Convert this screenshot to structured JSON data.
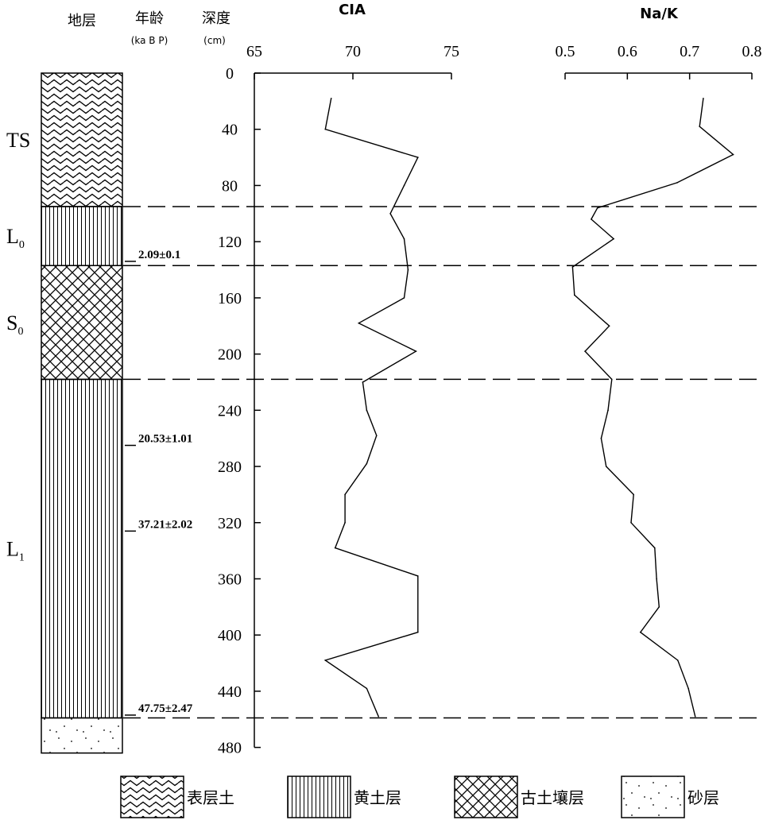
{
  "headers": {
    "stratum": "地层",
    "age": "年龄",
    "age_unit": "(ka B P)",
    "depth": "深度",
    "depth_unit": "(cm)"
  },
  "layers": [
    {
      "main": "TS",
      "sub": "",
      "pattern": "wavy",
      "top": 0,
      "bottom": 95
    },
    {
      "main": "L",
      "sub": "0",
      "pattern": "vlines",
      "top": 95,
      "bottom": 137
    },
    {
      "main": "S",
      "sub": "0",
      "pattern": "cross",
      "top": 137,
      "bottom": 218
    },
    {
      "main": "L",
      "sub": "1",
      "pattern": "vlines",
      "top": 218,
      "bottom": 459
    },
    {
      "main": "",
      "sub": "",
      "pattern": "dots",
      "top": 459,
      "bottom": 484
    }
  ],
  "ages": [
    {
      "label": "2.09±0.1",
      "depth": 134
    },
    {
      "label": "20.53±1.01",
      "depth": 265
    },
    {
      "label": "37.21±2.02",
      "depth": 326
    },
    {
      "label": "47.75±2.47",
      "depth": 457
    }
  ],
  "boundaries": [
    95,
    137,
    218,
    459
  ],
  "legend": [
    {
      "label": "表层土",
      "pattern": "wavy"
    },
    {
      "label": "黄土层",
      "pattern": "vlines"
    },
    {
      "label": "古土壤层",
      "pattern": "cross"
    },
    {
      "label": "砂层",
      "pattern": "dots"
    }
  ],
  "chart_data": {
    "type": "line",
    "depth_axis": {
      "label": "深度",
      "unit": "(cm)",
      "range": [
        0,
        480
      ],
      "ticks": [
        0,
        40,
        80,
        120,
        160,
        200,
        240,
        280,
        320,
        360,
        400,
        440,
        480
      ]
    },
    "series": [
      {
        "name": "CIA",
        "xlim": [
          65,
          75
        ],
        "ticks": [
          "65",
          "70",
          "75"
        ],
        "points": [
          {
            "depth": 18,
            "value": 68.9
          },
          {
            "depth": 40,
            "value": 68.6
          },
          {
            "depth": 60,
            "value": 73.3
          },
          {
            "depth": 80,
            "value": 72.6
          },
          {
            "depth": 100,
            "value": 71.9
          },
          {
            "depth": 118,
            "value": 72.6
          },
          {
            "depth": 140,
            "value": 72.8
          },
          {
            "depth": 160,
            "value": 72.6
          },
          {
            "depth": 178,
            "value": 70.3
          },
          {
            "depth": 198,
            "value": 73.2
          },
          {
            "depth": 220,
            "value": 70.5
          },
          {
            "depth": 240,
            "value": 70.7
          },
          {
            "depth": 258,
            "value": 71.2
          },
          {
            "depth": 278,
            "value": 70.7
          },
          {
            "depth": 300,
            "value": 69.6
          },
          {
            "depth": 320,
            "value": 69.6
          },
          {
            "depth": 338,
            "value": 69.1
          },
          {
            "depth": 358,
            "value": 73.3
          },
          {
            "depth": 398,
            "value": 73.3
          },
          {
            "depth": 418,
            "value": 68.6
          },
          {
            "depth": 438,
            "value": 70.7
          },
          {
            "depth": 458,
            "value": 71.3
          }
        ]
      },
      {
        "name": "Na/K",
        "xlim": [
          0.5,
          0.8
        ],
        "ticks": [
          "0.5",
          "0.6",
          "0.7",
          "0.8"
        ],
        "points": [
          {
            "depth": 18,
            "value": 0.722
          },
          {
            "depth": 38,
            "value": 0.716
          },
          {
            "depth": 58,
            "value": 0.77
          },
          {
            "depth": 78,
            "value": 0.68
          },
          {
            "depth": 96,
            "value": 0.552
          },
          {
            "depth": 104,
            "value": 0.542
          },
          {
            "depth": 118,
            "value": 0.578
          },
          {
            "depth": 138,
            "value": 0.512
          },
          {
            "depth": 158,
            "value": 0.515
          },
          {
            "depth": 180,
            "value": 0.571
          },
          {
            "depth": 198,
            "value": 0.532
          },
          {
            "depth": 218,
            "value": 0.575
          },
          {
            "depth": 240,
            "value": 0.569
          },
          {
            "depth": 260,
            "value": 0.558
          },
          {
            "depth": 280,
            "value": 0.566
          },
          {
            "depth": 300,
            "value": 0.61
          },
          {
            "depth": 320,
            "value": 0.606
          },
          {
            "depth": 338,
            "value": 0.644
          },
          {
            "depth": 360,
            "value": 0.647
          },
          {
            "depth": 380,
            "value": 0.651
          },
          {
            "depth": 398,
            "value": 0.621
          },
          {
            "depth": 418,
            "value": 0.681
          },
          {
            "depth": 438,
            "value": 0.698
          },
          {
            "depth": 458,
            "value": 0.709
          }
        ]
      }
    ]
  }
}
